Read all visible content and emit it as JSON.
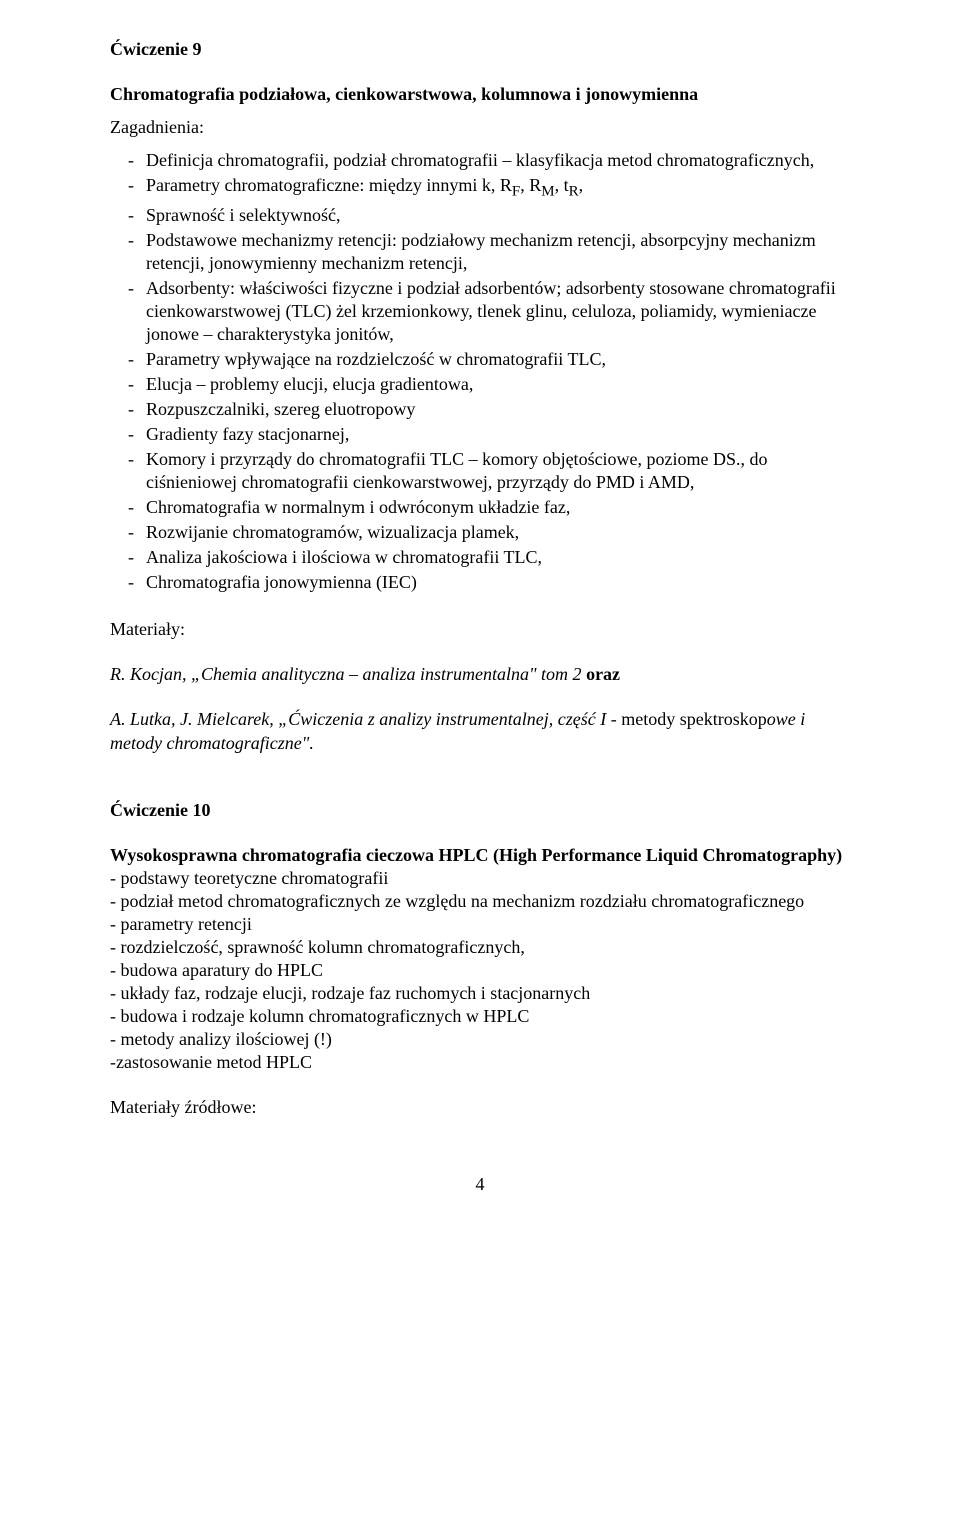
{
  "typography": {
    "font_family": "Times New Roman",
    "body_fontsize_pt": 14,
    "body_color": "#000000",
    "background_color": "#ffffff",
    "line_height": 1.28
  },
  "ex9": {
    "heading": "Ćwiczenie 9",
    "title": "Chromatografia podziałowa, cienkowarstwowa, kolumnowa i jonowymienna",
    "zagadnienia_label": "Zagadnienia:",
    "items": [
      "Definicja chromatografii, podział chromatografii – klasyfikacja metod chromatograficznych,",
      "Parametry chromatograficzne: między innymi k, R<sub>F</sub>, R<sub>M</sub>, t<sub>R</sub>,",
      "Sprawność i  selektywność,",
      "Podstawowe mechanizmy retencji: podziałowy mechanizm retencji, absorpcyjny mechanizm retencji, jonowymienny mechanizm retencji,",
      "Adsorbenty: właściwości fizyczne i podział adsorbentów; adsorbenty stosowane chromatografii cienkowarstwowej (TLC) żel krzemionkowy, tlenek glinu, celuloza, poliamidy, wymieniacze jonowe – charakterystyka jonitów,",
      "Parametry wpływające na rozdzielczość w chromatografii TLC,",
      "Elucja – problemy elucji, elucja gradientowa,",
      "Rozpuszczalniki, szereg eluotropowy",
      "Gradienty fazy stacjonarnej,",
      "Komory i przyrządy do chromatografii TLC – komory objętościowe, poziome DS., do ciśnieniowej chromatografii cienkowarstwowej, przyrządy do PMD i AMD,",
      "Chromatografia w normalnym i odwróconym układzie faz,",
      "Rozwijanie chromatogramów, wizualizacja plamek,",
      "Analiza jakościowa i ilościowa w chromatografii TLC,",
      "Chromatografia jonowymienna (IEC)"
    ],
    "materialy_label": "Materiały:",
    "ref1_html": "<span class=\"italic\">R. Kocjan, „Chemia analityczna – analiza instrumentalna\" tom 2 </span> <span class=\"bold\">oraz</span>",
    "ref2_html": "<span class=\"italic\">A. Lutka, J. Mielcarek, „Ćwiczenia z analizy instrumentalnej, część I</span> - metody spektroskop<span class=\"italic\">owe i metody chromatograficzne\".</span>"
  },
  "ex10": {
    "heading": "Ćwiczenie 10",
    "title": "Wysokosprawna chromatografia cieczowa HPLC (High Performance Liquid Chromatography)",
    "lines": [
      "- podstawy teoretyczne chromatografii",
      "- podział metod chromatograficznych ze względu na mechanizm rozdziału chromatograficznego",
      "- parametry retencji",
      "- rozdzielczość, sprawność kolumn chromatograficznych,",
      "- budowa aparatury do HPLC",
      "- układy faz, rodzaje elucji, rodzaje faz ruchomych i stacjonarnych",
      "- budowa i rodzaje kolumn chromatograficznych w HPLC",
      "- metody analizy ilościowej (!)",
      "-zastosowanie metod HPLC"
    ],
    "materialy_label": "Materiały źródłowe:"
  },
  "page_number": "4"
}
